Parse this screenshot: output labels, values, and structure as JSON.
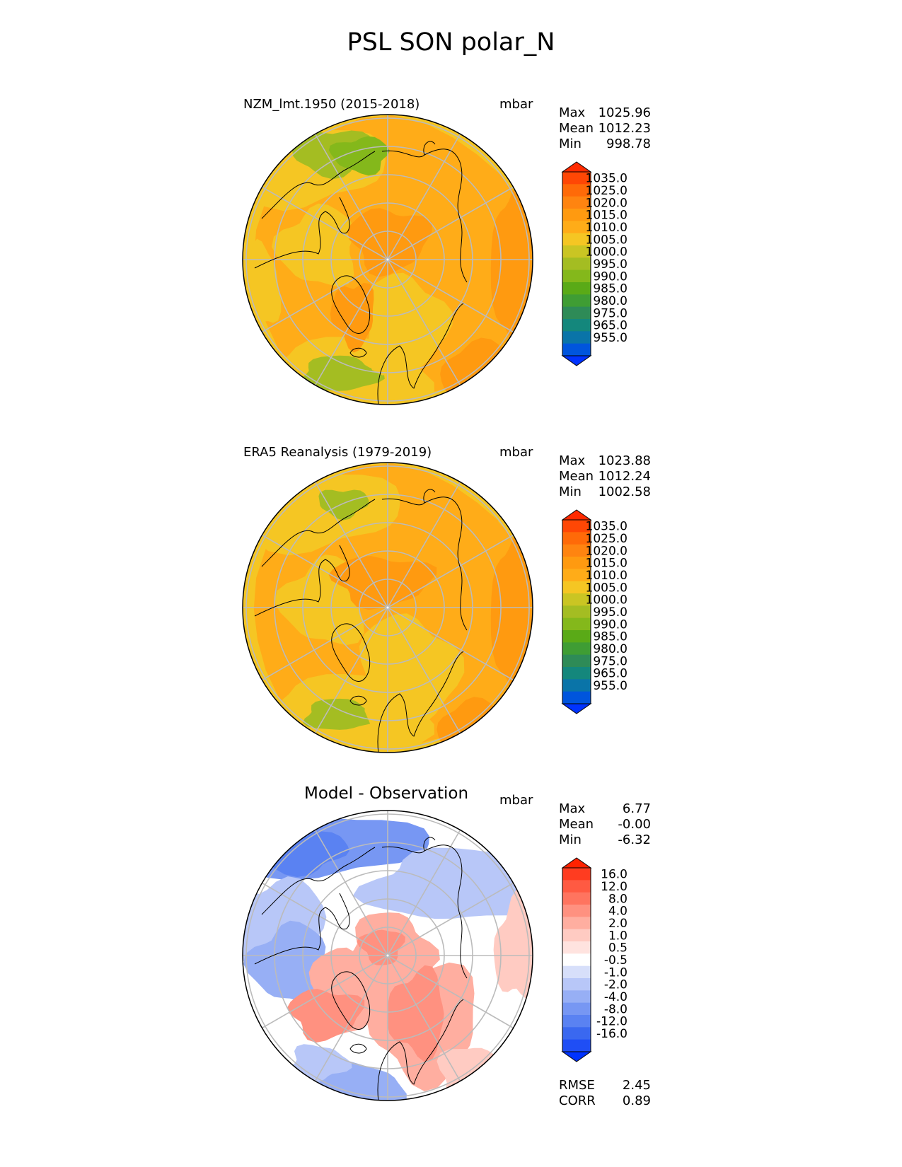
{
  "figure_title": "PSL SON polar_N",
  "colors": {
    "psl_fills": [
      "#0033ff",
      "#0055dd",
      "#0a74a8",
      "#14877c",
      "#2e8b57",
      "#3f9d34",
      "#5aaa17",
      "#84b81b",
      "#a4bd22",
      "#cac523",
      "#f5c623",
      "#ffac18",
      "#ff9a10",
      "#ff8410",
      "#ff6a08",
      "#ff4705",
      "#ff2a00"
    ],
    "diff_fills": [
      "#0033ff",
      "#1f4ef5",
      "#3a68f0",
      "#5a82f2",
      "#7797f3",
      "#97aff5",
      "#b8c7f8",
      "#d7dffa",
      "#ffffff",
      "#ffe3df",
      "#ffcbc2",
      "#ffaea0",
      "#ff9180",
      "#ff745f",
      "#ff5a42",
      "#ff3c20",
      "#ff2200"
    ],
    "land_line": "#000000",
    "grid_line": "#bbbbbb"
  },
  "panels": [
    {
      "title": "NZM_lmt.1950 (2015-2018)",
      "units": "mbar",
      "stats": [
        {
          "label": "Max",
          "value": "1025.96"
        },
        {
          "label": "Mean",
          "value": "1012.23"
        },
        {
          "label": "Min",
          "value": "998.78"
        }
      ],
      "colorbar_labels": [
        "1035.0",
        "1025.0",
        "1020.0",
        "1015.0",
        "1010.0",
        "1005.0",
        "1000.0",
        "995.0",
        "990.0",
        "985.0",
        "980.0",
        "975.0",
        "965.0",
        "955.0"
      ]
    },
    {
      "title": "ERA5 Reanalysis (1979-2019)",
      "units": "mbar",
      "stats": [
        {
          "label": "Max",
          "value": "1023.88"
        },
        {
          "label": "Mean",
          "value": "1012.24"
        },
        {
          "label": "Min",
          "value": "1002.58"
        }
      ],
      "colorbar_labels": [
        "1035.0",
        "1025.0",
        "1020.0",
        "1015.0",
        "1010.0",
        "1005.0",
        "1000.0",
        "995.0",
        "990.0",
        "985.0",
        "980.0",
        "975.0",
        "965.0",
        "955.0"
      ]
    },
    {
      "title": "Model - Observation",
      "units": "mbar",
      "stats": [
        {
          "label": "Max",
          "value": "6.77"
        },
        {
          "label": "Mean",
          "value": "-0.00"
        },
        {
          "label": "Min",
          "value": "-6.32"
        }
      ],
      "colorbar_labels": [
        "16.0",
        "12.0",
        "8.0",
        "4.0",
        "2.0",
        "1.0",
        "0.5",
        "-0.5",
        "-1.0",
        "-2.0",
        "-4.0",
        "-8.0",
        "-12.0",
        "-16.0"
      ],
      "metrics": [
        {
          "label": "RMSE",
          "value": "2.45"
        },
        {
          "label": "CORR",
          "value": "0.89"
        }
      ]
    }
  ],
  "chart_data": [
    {
      "type": "heatmap",
      "projection": "north polar stereographic",
      "title": "NZM_lmt.1950 (2015-2018)",
      "variable": "PSL",
      "season": "SON",
      "units": "mbar",
      "max": 1025.96,
      "mean": 1012.23,
      "min": 998.78,
      "levels": [
        955,
        965,
        975,
        980,
        985,
        990,
        995,
        1000,
        1005,
        1010,
        1015,
        1020,
        1025,
        1035
      ],
      "field_description": "mostly 1010-1020 mbar; lower (1000-1005) over North Pacific/Aleutians and Icelandic region; higher (1020-1025) over Siberia and Greenland"
    },
    {
      "type": "heatmap",
      "projection": "north polar stereographic",
      "title": "ERA5 Reanalysis (1979-2019)",
      "variable": "PSL",
      "season": "SON",
      "units": "mbar",
      "max": 1023.88,
      "mean": 1012.24,
      "min": 1002.58,
      "levels": [
        955,
        965,
        975,
        980,
        985,
        990,
        995,
        1000,
        1005,
        1010,
        1015,
        1020,
        1025,
        1035
      ]
    },
    {
      "type": "heatmap",
      "projection": "north polar stereographic",
      "title": "Model - Observation",
      "units": "mbar",
      "max": 6.77,
      "mean": -0.0,
      "min": -6.32,
      "levels": [
        -16,
        -12,
        -8,
        -4,
        -2,
        -1,
        -0.5,
        0.5,
        1,
        2,
        4,
        8,
        12,
        16
      ],
      "rmse": 2.45,
      "corr": 0.89
    }
  ]
}
